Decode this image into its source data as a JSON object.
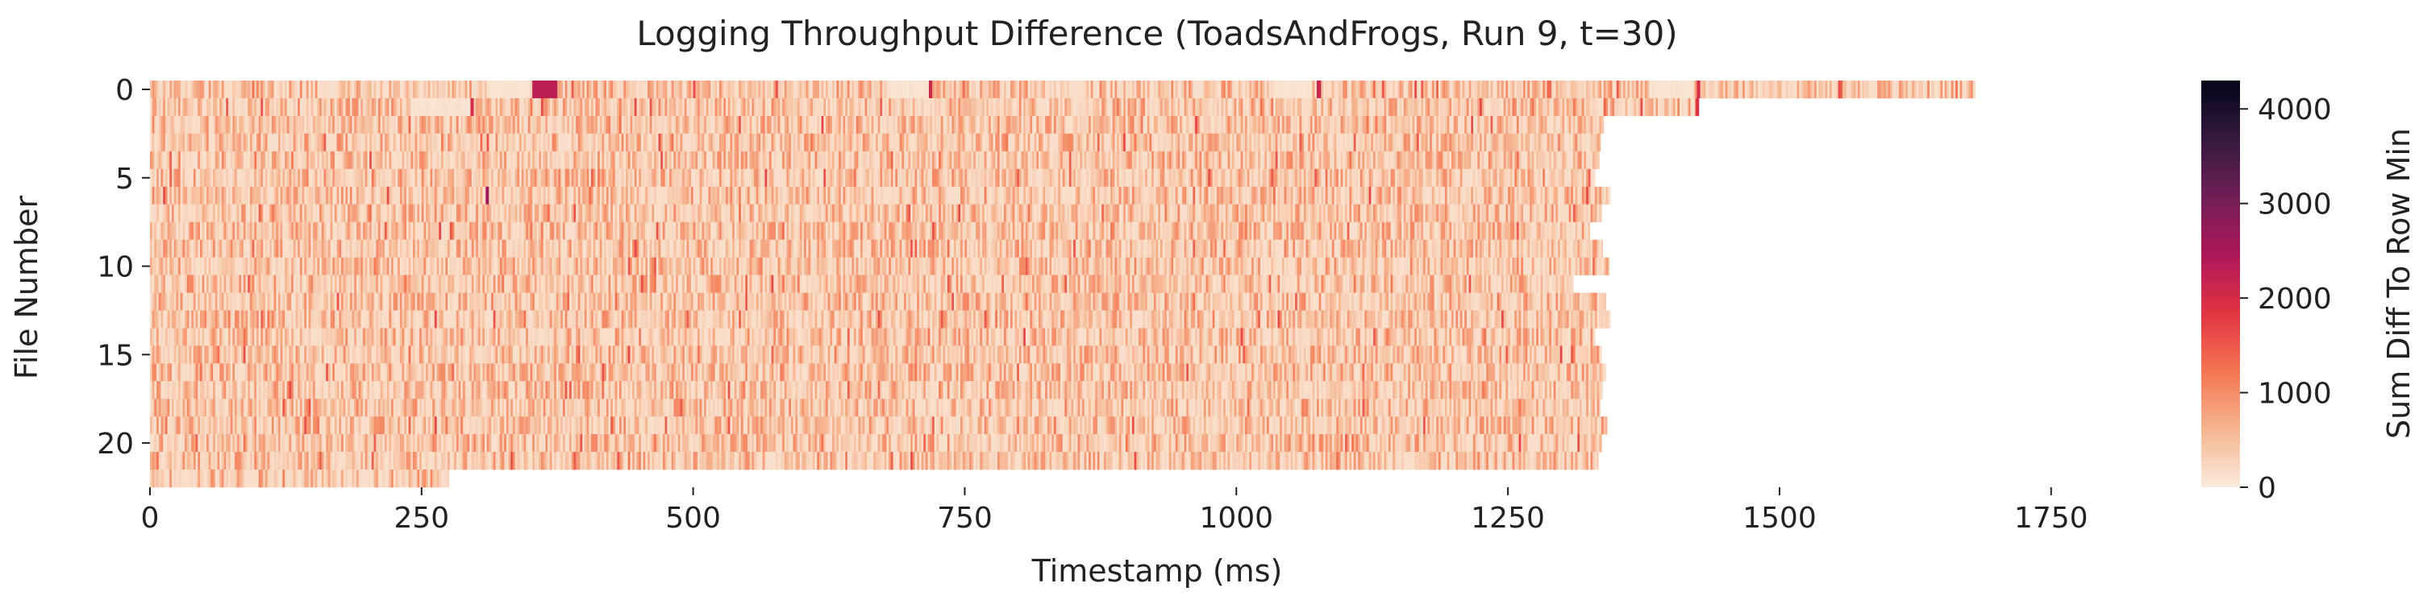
{
  "chart_data": {
    "type": "heatmap",
    "title": "Logging Throughput Difference (ToadsAndFrogs, Run 9, t=30)",
    "xlabel": "Timestamp (ms)",
    "ylabel": "File Number",
    "xlim": [
      0,
      1840
    ],
    "x_ticks": [
      0,
      250,
      500,
      750,
      1000,
      1250,
      1500,
      1750
    ],
    "y_ticks": [
      0,
      5,
      10,
      15,
      20
    ],
    "rows": 23,
    "row_end_ms": [
      1680,
      1425,
      1338,
      1335,
      1334,
      1330,
      1344,
      1336,
      1325,
      1337,
      1343,
      1310,
      1340,
      1344,
      1330,
      1336,
      1340,
      1337,
      1335,
      1341,
      1336,
      1333,
      275
    ],
    "highlights": [
      {
        "row": 0,
        "start_ms": 352,
        "end_ms": 375,
        "value": 2300
      },
      {
        "row": 0,
        "start_ms": 717,
        "end_ms": 720,
        "value": 2100
      },
      {
        "row": 0,
        "start_ms": 1074,
        "end_ms": 1078,
        "value": 2100
      },
      {
        "row": 0,
        "start_ms": 1424,
        "end_ms": 1427,
        "value": 2000
      },
      {
        "row": 1,
        "start_ms": 295,
        "end_ms": 298,
        "value": 2000
      },
      {
        "row": 1,
        "start_ms": 1423,
        "end_ms": 1426,
        "value": 1900
      },
      {
        "row": 6,
        "start_ms": 309,
        "end_ms": 312,
        "value": 2600
      }
    ],
    "light_gaps": [
      {
        "row": 0,
        "start_ms": 310,
        "end_ms": 350
      },
      {
        "row": 0,
        "start_ms": 680,
        "end_ms": 715
      },
      {
        "row": 0,
        "start_ms": 1035,
        "end_ms": 1070
      },
      {
        "row": 0,
        "start_ms": 1380,
        "end_ms": 1420
      },
      {
        "row": 1,
        "start_ms": 240,
        "end_ms": 295
      }
    ],
    "colorbar": {
      "label": "Sum Diff To Row Min",
      "min": 0,
      "max": 4300,
      "ticks": [
        0,
        1000,
        2000,
        3000,
        4000
      ],
      "colormap": "rocket_r",
      "stops": [
        "#faebdd",
        "#f6b48f",
        "#f37651",
        "#e13342",
        "#ad1759",
        "#701f57",
        "#35193e",
        "#03051a"
      ]
    },
    "grid": false,
    "legend": "none"
  }
}
